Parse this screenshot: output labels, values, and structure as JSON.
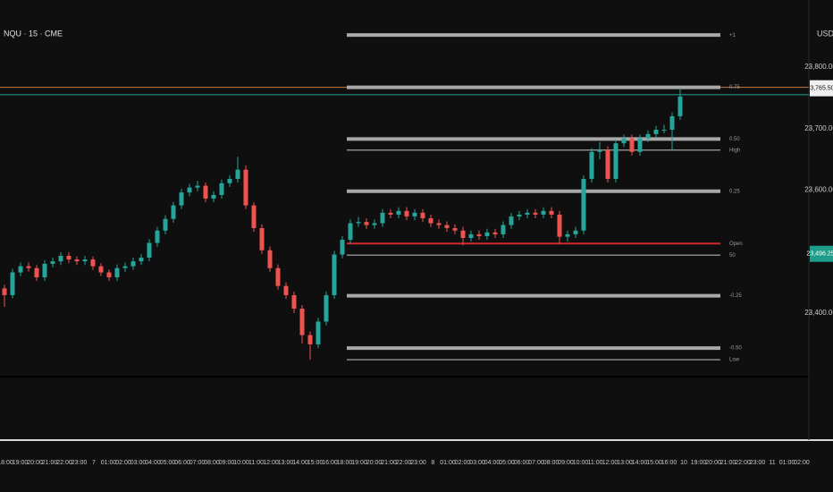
{
  "chart_data": {
    "type": "candlestick",
    "title": "NQU · 15 · CME",
    "currency": "USD",
    "up_color": "#26a69a",
    "down_color": "#ef5350",
    "ylim": [
      23298,
      23909
    ],
    "yticks": [
      {
        "value": 23800,
        "label": "23,800.00"
      },
      {
        "value": 23700,
        "label": "23,700.00"
      },
      {
        "value": 23600,
        "label": "23,600.00"
      },
      {
        "value": 23400,
        "label": "23,400.00"
      }
    ],
    "open": [
      23440,
      23429,
      23466,
      23476,
      23473,
      23458,
      23480,
      23484,
      23493,
      23487,
      23484,
      23487,
      23476,
      23466,
      23458,
      23473,
      23476,
      23484,
      23490,
      23514,
      23534,
      23553,
      23575,
      23596,
      23604,
      23607,
      23586,
      23592,
      23611,
      23618,
      23633,
      23575,
      23538,
      23502,
      23473,
      23444,
      23429,
      23407,
      23364,
      23349,
      23386,
      23429,
      23495,
      23519,
      23546,
      23548,
      23543,
      23546,
      23563,
      23560,
      23566,
      23557,
      23563,
      23554,
      23546,
      23543,
      23538,
      23534,
      23522,
      23528,
      23525,
      23531,
      23528,
      23543,
      23557,
      23560,
      23563,
      23560,
      23566,
      23560,
      23524,
      23528,
      23534,
      23618,
      23662,
      23665,
      23618,
      23676,
      23684,
      23662,
      23684,
      23691,
      23698,
      23698,
      23720
    ],
    "high": [
      23446,
      23472,
      23482,
      23482,
      23478,
      23486,
      23490,
      23499,
      23499,
      23492,
      23493,
      23492,
      23481,
      23471,
      23479,
      23482,
      23490,
      23496,
      23520,
      23540,
      23559,
      23581,
      23602,
      23610,
      23615,
      23612,
      23598,
      23617,
      23624,
      23654,
      23640,
      23580,
      23544,
      23508,
      23479,
      23450,
      23435,
      23413,
      23370,
      23392,
      23435,
      23501,
      23525,
      23552,
      23556,
      23554,
      23552,
      23569,
      23569,
      23572,
      23572,
      23569,
      23569,
      23560,
      23552,
      23549,
      23544,
      23540,
      23534,
      23534,
      23537,
      23537,
      23549,
      23563,
      23566,
      23569,
      23569,
      23572,
      23572,
      23566,
      23534,
      23540,
      23624,
      23668,
      23678,
      23671,
      23682,
      23690,
      23690,
      23690,
      23697,
      23704,
      23706,
      23726,
      23766
    ],
    "low": [
      23410,
      23424,
      23460,
      23467,
      23452,
      23452,
      23474,
      23478,
      23481,
      23478,
      23478,
      23470,
      23460,
      23452,
      23452,
      23467,
      23470,
      23478,
      23484,
      23508,
      23528,
      23547,
      23569,
      23590,
      23598,
      23580,
      23580,
      23586,
      23605,
      23612,
      23569,
      23532,
      23496,
      23467,
      23438,
      23423,
      23400,
      23350,
      23324,
      23343,
      23380,
      23423,
      23489,
      23513,
      23540,
      23537,
      23537,
      23540,
      23554,
      23554,
      23551,
      23551,
      23548,
      23540,
      23537,
      23532,
      23528,
      23510,
      23516,
      23519,
      23519,
      23522,
      23522,
      23537,
      23551,
      23554,
      23554,
      23554,
      23554,
      23512,
      23516,
      23522,
      23528,
      23612,
      23650,
      23612,
      23612,
      23670,
      23656,
      23656,
      23678,
      23685,
      23692,
      23666,
      23714
    ],
    "close": [
      23429,
      23466,
      23476,
      23473,
      23458,
      23480,
      23484,
      23493,
      23487,
      23484,
      23487,
      23476,
      23466,
      23458,
      23473,
      23476,
      23484,
      23490,
      23514,
      23534,
      23553,
      23575,
      23596,
      23604,
      23607,
      23586,
      23592,
      23611,
      23618,
      23633,
      23575,
      23538,
      23502,
      23473,
      23444,
      23429,
      23407,
      23364,
      23349,
      23386,
      23429,
      23495,
      23519,
      23546,
      23548,
      23543,
      23546,
      23563,
      23560,
      23566,
      23557,
      23563,
      23554,
      23546,
      23543,
      23538,
      23534,
      23522,
      23528,
      23525,
      23531,
      23528,
      23543,
      23557,
      23560,
      23563,
      23560,
      23566,
      23560,
      23524,
      23528,
      23534,
      23618,
      23662,
      23665,
      23618,
      23676,
      23684,
      23662,
      23684,
      23691,
      23698,
      23698,
      23720,
      23752
    ],
    "levels": [
      {
        "label": "+1",
        "value": 23852,
        "style": "thick"
      },
      {
        "label": "0.75",
        "value": 23767,
        "style": "thick"
      },
      {
        "label": "0.50",
        "value": 23683,
        "style": "thick"
      },
      {
        "label": "High",
        "value": 23665,
        "style": "thin"
      },
      {
        "label": "0.25",
        "value": 23598,
        "style": "thick"
      },
      {
        "label": "Open",
        "value": 23513,
        "style": "open"
      },
      {
        "label": "50",
        "value": 23494,
        "style": "thin"
      },
      {
        "label": "-0.25",
        "value": 23428,
        "style": "thick"
      },
      {
        "label": "-0.50",
        "value": 23343,
        "style": "thick"
      },
      {
        "label": "Low",
        "value": 23324,
        "style": "thin"
      }
    ],
    "ref_lines": [
      {
        "value": 23767,
        "color": "#c97a3a"
      },
      {
        "value": 23755,
        "color": "#26a69a"
      }
    ],
    "price_labels": [
      {
        "value": 23765.5,
        "label": "23,765.50",
        "style": "light"
      },
      {
        "value": 23496.25,
        "label": "23,496.25",
        "style": "teal"
      }
    ],
    "time_labels": [
      "18:00",
      "19:00",
      "20:00",
      "21:00",
      "22:00",
      "23:00",
      "7",
      "01:00",
      "02:00",
      "03:00",
      "04:00",
      "05:00",
      "06:00",
      "07:00",
      "08:00",
      "09:00",
      "10:00",
      "11:00",
      "12:00",
      "13:00",
      "14:00",
      "15:00",
      "16:00",
      "18:00",
      "19:00",
      "20:00",
      "21:00",
      "22:00",
      "23:00",
      "8",
      "01:00",
      "02:00",
      "03:00",
      "04:00",
      "05:00",
      "06:00",
      "07:00",
      "08:00",
      "09:00",
      "10:00",
      "11:00",
      "12:00",
      "13:00",
      "14:00",
      "15:00",
      "16:00",
      "10",
      "19:00",
      "20:00",
      "21:00",
      "22:00",
      "23:00",
      "11",
      "01:00",
      "02:00"
    ]
  }
}
